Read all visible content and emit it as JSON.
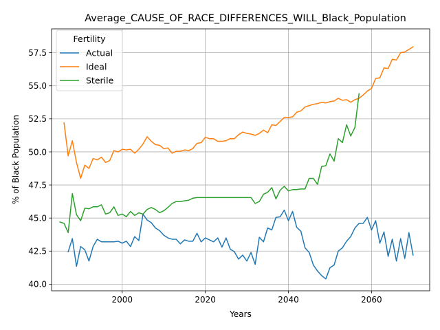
{
  "chart_data": {
    "type": "line",
    "title": "Average_CAUSE_OF_RACE_DIFFERENCES_WILL_Black_Population",
    "xlabel": "Years",
    "ylabel": "% of Black Population",
    "xlim": [
      1983,
      2074
    ],
    "ylim": [
      39.5,
      59.3
    ],
    "xticks": [
      2000,
      2020,
      2040,
      2060
    ],
    "xtick_labels": [
      "2000",
      "2020",
      "2040",
      "2060"
    ],
    "yticks": [
      40.0,
      42.5,
      45.0,
      47.5,
      50.0,
      52.5,
      55.0,
      57.5
    ],
    "ytick_labels": [
      "40.0",
      "42.5",
      "45.0",
      "47.5",
      "50.0",
      "52.5",
      "55.0",
      "57.5"
    ],
    "grid": true,
    "legend": {
      "title": "Fertility",
      "placement": "top-left"
    },
    "series": [
      {
        "name": "Actual",
        "color": "#1f77b4",
        "x": [
          1987,
          1988,
          1989,
          1990,
          1991,
          1992,
          1993,
          1994,
          1995,
          1996,
          1997,
          1998,
          1999,
          2000,
          2001,
          2002,
          2003,
          2004,
          2005,
          2006,
          2007,
          2008,
          2009,
          2010,
          2011,
          2012,
          2013,
          2014,
          2015,
          2016,
          2017,
          2018,
          2019,
          2020,
          2021,
          2022,
          2023,
          2024,
          2025,
          2026,
          2027,
          2028,
          2029,
          2030,
          2031,
          2032,
          2033,
          2034,
          2035,
          2036,
          2037,
          2038,
          2039,
          2040,
          2041,
          2042,
          2043,
          2044,
          2045,
          2046,
          2047,
          2048,
          2049,
          2050,
          2051,
          2052,
          2053,
          2054,
          2055,
          2056,
          2057,
          2058,
          2059,
          2060,
          2061,
          2062,
          2063,
          2064,
          2065,
          2066,
          2067,
          2068,
          2069,
          2070
        ],
        "values": [
          42.45,
          43.45,
          41.35,
          42.85,
          42.6,
          41.75,
          42.85,
          43.4,
          43.2,
          43.2,
          43.2,
          43.2,
          43.25,
          43.1,
          43.25,
          42.85,
          43.6,
          43.3,
          45.3,
          44.85,
          44.65,
          44.25,
          44.05,
          43.7,
          43.5,
          43.4,
          43.4,
          43.05,
          43.35,
          43.25,
          43.25,
          43.85,
          43.2,
          43.5,
          43.35,
          43.2,
          43.5,
          42.8,
          43.5,
          42.65,
          42.45,
          41.9,
          42.2,
          41.75,
          42.4,
          41.5,
          43.55,
          43.2,
          44.25,
          44.1,
          45.05,
          45.1,
          45.6,
          44.8,
          45.5,
          44.3,
          44.0,
          42.75,
          42.4,
          41.45,
          41.0,
          40.65,
          40.4,
          41.25,
          41.45,
          42.5,
          42.75,
          43.25,
          43.6,
          44.25,
          44.6,
          44.6,
          45.05,
          44.1,
          44.8,
          43.1,
          43.95,
          42.1,
          43.4,
          41.75,
          43.45,
          41.95,
          43.9,
          42.2
        ]
      },
      {
        "name": "Ideal",
        "color": "#ff7f0e",
        "x": [
          1986,
          1987,
          1988,
          1989,
          1990,
          1991,
          1992,
          1993,
          1994,
          1995,
          1996,
          1997,
          1998,
          1999,
          2000,
          2001,
          2002,
          2003,
          2004,
          2005,
          2006,
          2007,
          2008,
          2009,
          2010,
          2011,
          2012,
          2013,
          2014,
          2015,
          2016,
          2017,
          2018,
          2019,
          2020,
          2021,
          2022,
          2023,
          2024,
          2025,
          2026,
          2027,
          2028,
          2029,
          2030,
          2031,
          2032,
          2033,
          2034,
          2035,
          2036,
          2037,
          2038,
          2039,
          2040,
          2041,
          2042,
          2043,
          2044,
          2045,
          2046,
          2047,
          2048,
          2049,
          2050,
          2051,
          2052,
          2053,
          2054,
          2055,
          2056,
          2057,
          2058,
          2059,
          2060,
          2061,
          2062,
          2063,
          2064,
          2065,
          2066,
          2067,
          2068,
          2069,
          2070
        ],
        "values": [
          52.2,
          49.7,
          50.85,
          49.2,
          48.0,
          49.0,
          48.75,
          49.5,
          49.4,
          49.6,
          49.2,
          49.35,
          50.1,
          50.0,
          50.2,
          50.15,
          50.2,
          49.9,
          50.2,
          50.6,
          51.15,
          50.8,
          50.55,
          50.5,
          50.25,
          50.3,
          49.9,
          50.05,
          50.05,
          50.15,
          50.1,
          50.25,
          50.65,
          50.7,
          51.1,
          51.0,
          51.0,
          50.8,
          50.8,
          50.85,
          51.0,
          51.0,
          51.3,
          51.5,
          51.4,
          51.35,
          51.25,
          51.4,
          51.65,
          51.45,
          52.05,
          52.0,
          52.3,
          52.6,
          52.6,
          52.65,
          53.0,
          53.1,
          53.4,
          53.5,
          53.6,
          53.65,
          53.75,
          53.7,
          53.8,
          53.85,
          54.05,
          53.9,
          53.95,
          53.75,
          53.95,
          54.05,
          54.3,
          54.6,
          54.8,
          55.55,
          55.6,
          56.35,
          56.3,
          57.0,
          56.95,
          57.5,
          57.55,
          57.75,
          57.95
        ]
      },
      {
        "name": "Sterile",
        "color": "#2ca02c",
        "x": [
          1985,
          1986,
          1987,
          1988,
          1989,
          1990,
          1991,
          1992,
          1993,
          1994,
          1995,
          1996,
          1997,
          1998,
          1999,
          2000,
          2001,
          2002,
          2003,
          2004,
          2005,
          2006,
          2007,
          2008,
          2009,
          2010,
          2011,
          2012,
          2013,
          2014,
          2015,
          2016,
          2017,
          2018,
          2019,
          2020,
          2021,
          2022,
          2023,
          2024,
          2025,
          2026,
          2027,
          2028,
          2029,
          2030,
          2031,
          2032,
          2033,
          2034,
          2035,
          2036,
          2037,
          2038,
          2039,
          2040,
          2041,
          2042,
          2043,
          2044,
          2045,
          2046,
          2047,
          2048,
          2049,
          2050,
          2051,
          2052,
          2053,
          2054,
          2055,
          2056,
          2057
        ],
        "values": [
          44.7,
          44.6,
          43.9,
          46.85,
          45.25,
          44.8,
          45.75,
          45.7,
          45.85,
          45.85,
          46.0,
          45.3,
          45.4,
          45.85,
          45.2,
          45.3,
          45.1,
          45.5,
          45.2,
          45.4,
          45.3,
          45.65,
          45.8,
          45.65,
          45.4,
          45.55,
          45.8,
          46.1,
          46.25,
          46.25,
          46.3,
          46.35,
          46.5,
          46.55,
          46.55,
          46.55,
          46.55,
          46.55,
          46.55,
          46.55,
          46.55,
          46.55,
          46.55,
          46.55,
          46.55,
          46.55,
          46.55,
          46.1,
          46.25,
          46.8,
          46.95,
          47.3,
          46.45,
          47.1,
          47.4,
          47.05,
          47.15,
          47.15,
          47.2,
          47.2,
          48.0,
          48.0,
          47.55,
          48.9,
          48.95,
          49.85,
          49.3,
          51.0,
          50.7,
          52.05,
          51.2,
          51.85,
          54.4
        ]
      }
    ]
  }
}
